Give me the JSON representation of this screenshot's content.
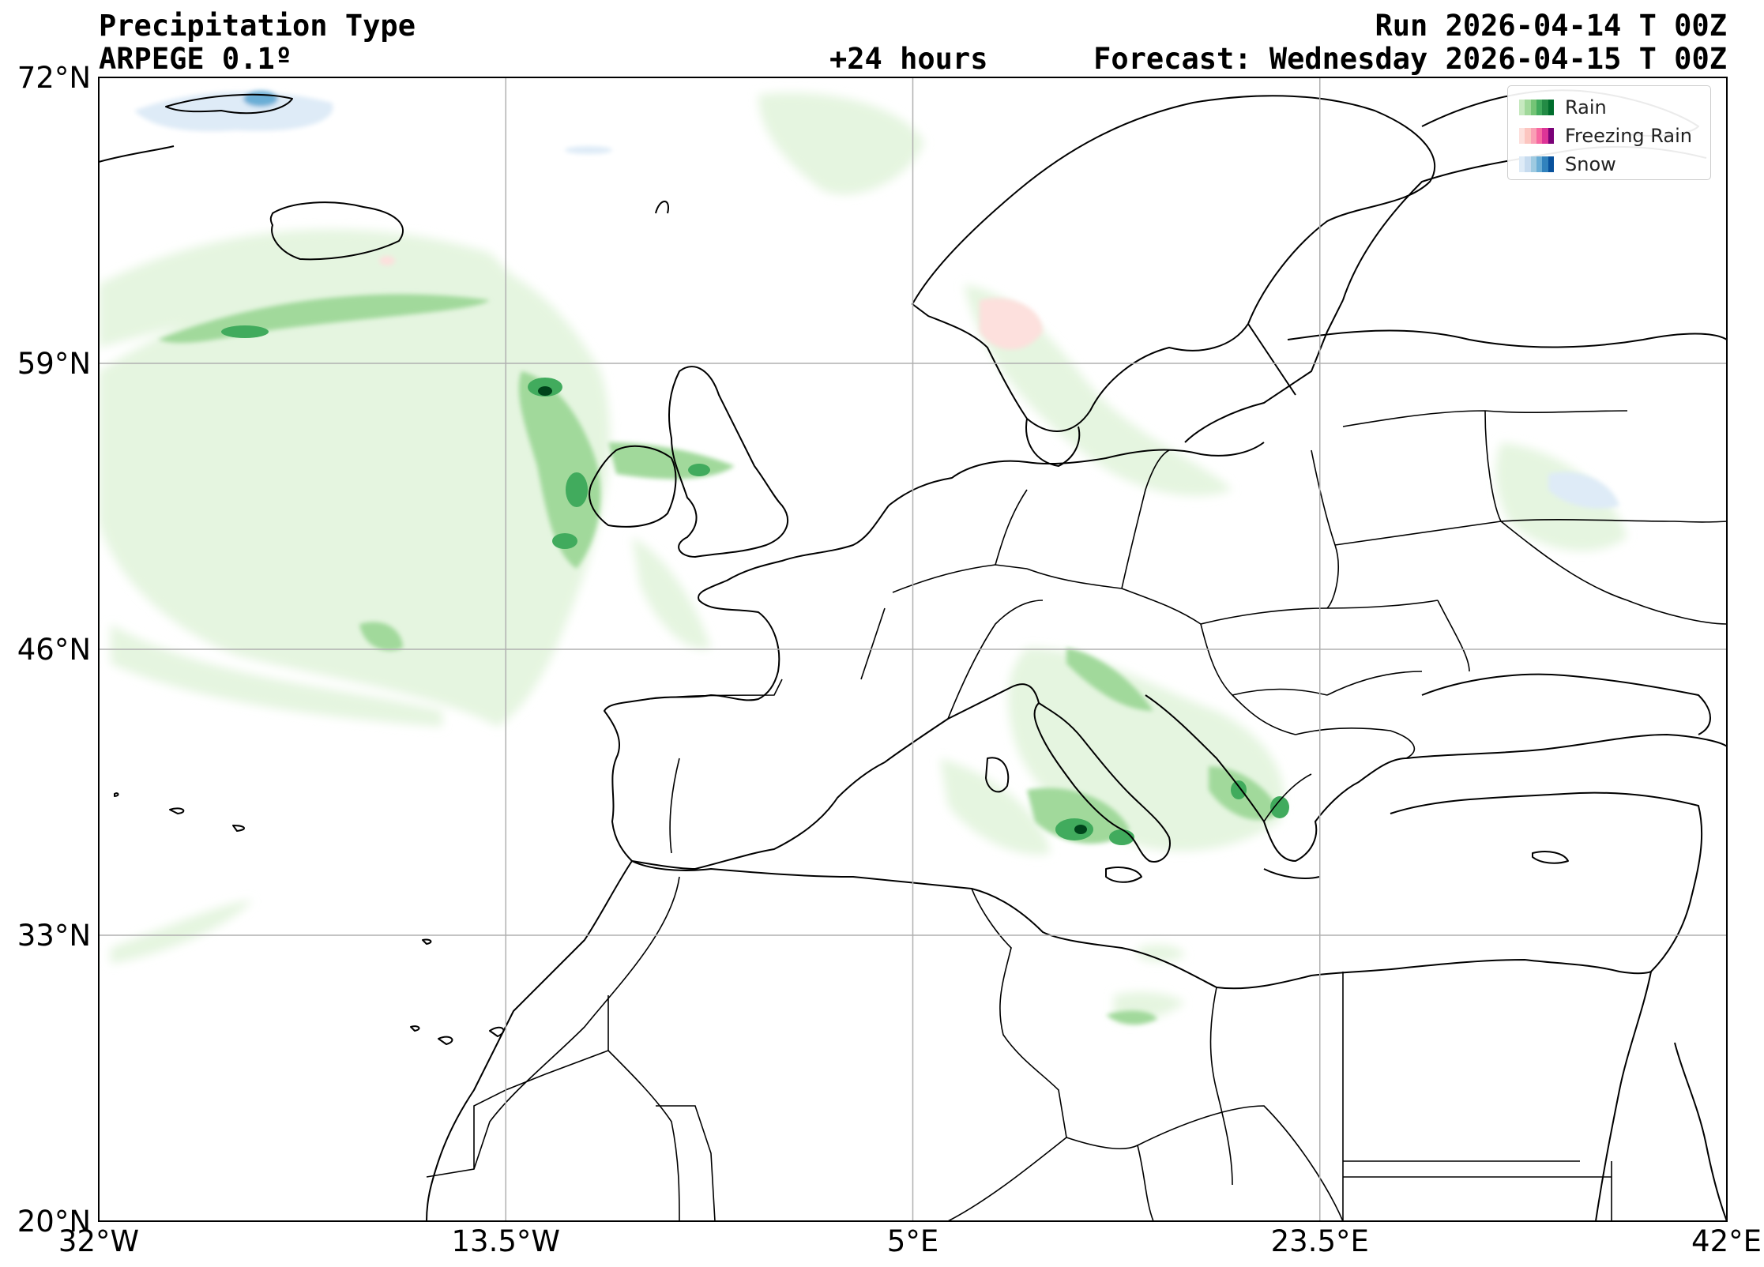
{
  "header": {
    "title": "Precipitation Type",
    "model": "ARPEGE 0.1º",
    "lead_time": "+24 hours",
    "run": "Run 2026-04-14 T 00Z",
    "forecast": "Forecast: Wednesday 2026-04-15 T 00Z"
  },
  "map": {
    "projection": "plate-carree",
    "lon_range": [
      -32,
      42
    ],
    "lat_range": [
      20,
      72
    ],
    "lat_ticks": [
      {
        "value": 72,
        "label": "72°N"
      },
      {
        "value": 59,
        "label": "59°N"
      },
      {
        "value": 46,
        "label": "46°N"
      },
      {
        "value": 33,
        "label": "33°N"
      },
      {
        "value": 20,
        "label": "20°N"
      }
    ],
    "lon_ticks": [
      {
        "value": -32,
        "label": "32°W"
      },
      {
        "value": -13.5,
        "label": "13.5°W"
      },
      {
        "value": 5,
        "label": "5°E"
      },
      {
        "value": 23.5,
        "label": "23.5°E"
      },
      {
        "value": 42,
        "label": "42°E"
      }
    ],
    "gridlines": true,
    "colors": {
      "coastline": "#000000",
      "grid": "#b0b0b0",
      "rain_light": "#e5f5e0",
      "rain_medium": "#a1d99b",
      "rain_heavy": "#41ab5d",
      "rain_max": "#00441b",
      "freezing_light": "#fde0dd",
      "snow_light": "#deebf7",
      "snow_heavy": "#2171b5"
    }
  },
  "legend": {
    "placement": "top-right",
    "items": [
      {
        "label": "Rain",
        "colors": [
          "#c7e9c0",
          "#a1d99b",
          "#74c476",
          "#41ab5d",
          "#238b45",
          "#006d2c"
        ]
      },
      {
        "label": "Freezing Rain",
        "colors": [
          "#fde0dd",
          "#fcc5c0",
          "#fa9fb5",
          "#f768a1",
          "#dd3497",
          "#7a0177"
        ]
      },
      {
        "label": "Snow",
        "colors": [
          "#deebf7",
          "#c6dbef",
          "#9ecae1",
          "#6baed6",
          "#3182bd",
          "#08519c"
        ]
      }
    ]
  }
}
